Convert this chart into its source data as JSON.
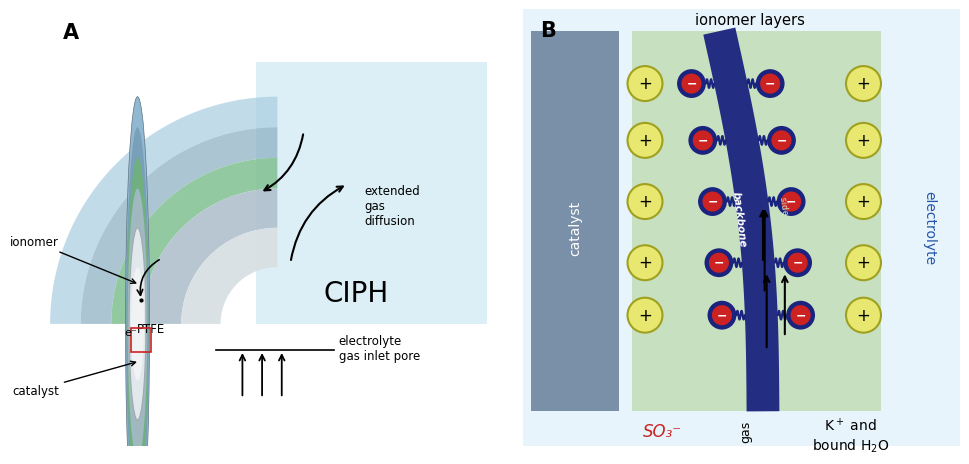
{
  "panel_A_label": "A",
  "panel_B_label": "B",
  "ciph_text": "CIPH",
  "ionomer_layers_text": "ionomer layers",
  "extended_gas_diffusion": "extended\ngas\ndiffusion",
  "electrolyte_gas_inlet": "electrolyte\ngas inlet pore",
  "ionomer_label": "ionomer",
  "e_label": "e⁻",
  "catalyst_label": "catalyst",
  "ptfe_label": "PTFE",
  "catalyst_B_label": "catalyst",
  "electrolyte_B_label": "electrolyte",
  "backbone_label": "backbone",
  "side_chain_left": "side chain",
  "side_chain_right": "side chain",
  "so3_label": "SO₃⁻",
  "gas_label": "gas",
  "kplus_label": "K⁺ and\nbound H₂O",
  "bg_color": "#ffffff",
  "light_blue_tube": "#b8dce8",
  "green_ionomer": "#8ec8a0",
  "tube_gray": "#b8c8d0",
  "backbone_blue": "#1a237e",
  "so3_red": "#cc2222",
  "so3_ring": "#1a237e",
  "kplus_yellow": "#e8e870",
  "kplus_ring_color": "#b8b830",
  "catalyst_gray": "#8090a8",
  "light_blue_bg_A": "#c0e0f0",
  "light_blue_bg_B": "#c5e5f5",
  "green_bg_B": "#b5d8b0",
  "red_box": "#cc2222"
}
